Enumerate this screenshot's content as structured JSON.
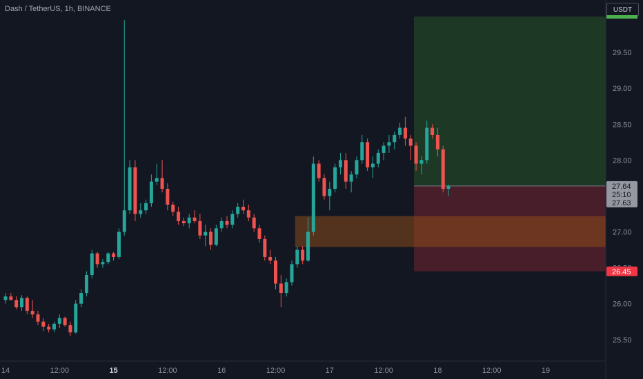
{
  "header": {
    "symbol_title": "Dash / TetherUS, 1h, BINANCE",
    "currency_button": "USDT"
  },
  "colors": {
    "background": "#131722",
    "up": "#26a69a",
    "down": "#ef5350",
    "profit_zone": "#1e3b27",
    "loss_zone": "#4a1f2a",
    "highlight_zone": "#8a4a1c",
    "target_line": "#4caf50"
  },
  "chart_data": {
    "type": "candlestick",
    "symbol": "Dash / TetherUS",
    "interval": "1h",
    "exchange": "BINANCE",
    "y_axis": {
      "ticks": [
        "25.50",
        "26.00",
        "26.50",
        "27.00",
        "27.50",
        "28.00",
        "28.50",
        "29.00",
        "29.50"
      ],
      "range": [
        25.2,
        30.0
      ]
    },
    "x_axis": {
      "ticks": [
        {
          "label": "14",
          "i": 0,
          "bold": false
        },
        {
          "label": "12:00",
          "i": 10,
          "bold": false
        },
        {
          "label": "15",
          "i": 20,
          "bold": true
        },
        {
          "label": "12:00",
          "i": 30,
          "bold": false
        },
        {
          "label": "16",
          "i": 40,
          "bold": false
        },
        {
          "label": "12:00",
          "i": 50,
          "bold": false
        },
        {
          "label": "17",
          "i": 60,
          "bold": false
        },
        {
          "label": "12:00",
          "i": 70,
          "bold": false
        },
        {
          "label": "18",
          "i": 80,
          "bold": false
        },
        {
          "label": "12:00",
          "i": 90,
          "bold": false
        },
        {
          "label": "19",
          "i": 100,
          "bold": false
        }
      ]
    },
    "candles": [
      [
        26.05,
        26.15,
        26.0,
        26.1
      ],
      [
        26.1,
        26.15,
        26.05,
        26.05
      ],
      [
        26.05,
        26.1,
        25.92,
        25.95
      ],
      [
        25.95,
        26.12,
        25.9,
        26.08
      ],
      [
        26.08,
        26.1,
        25.85,
        25.9
      ],
      [
        25.9,
        26.05,
        25.8,
        25.85
      ],
      [
        25.85,
        25.9,
        25.7,
        25.75
      ],
      [
        25.75,
        25.8,
        25.62,
        25.68
      ],
      [
        25.68,
        25.72,
        25.6,
        25.64
      ],
      [
        25.64,
        25.75,
        25.6,
        25.72
      ],
      [
        25.72,
        25.85,
        25.66,
        25.8
      ],
      [
        25.8,
        25.82,
        25.68,
        25.7
      ],
      [
        25.7,
        25.75,
        25.55,
        25.6
      ],
      [
        25.6,
        26.05,
        25.58,
        26.0
      ],
      [
        26.0,
        26.2,
        25.95,
        26.15
      ],
      [
        26.15,
        26.45,
        26.1,
        26.4
      ],
      [
        26.4,
        26.75,
        26.35,
        26.7
      ],
      [
        26.7,
        26.72,
        26.5,
        26.55
      ],
      [
        26.55,
        26.62,
        26.5,
        26.58
      ],
      [
        26.58,
        26.72,
        26.55,
        26.7
      ],
      [
        26.7,
        26.72,
        26.6,
        26.65
      ],
      [
        26.65,
        27.05,
        26.62,
        27.0
      ],
      [
        27.0,
        29.95,
        26.95,
        27.3
      ],
      [
        27.3,
        28.0,
        27.25,
        27.9
      ],
      [
        27.9,
        28.0,
        27.15,
        27.25
      ],
      [
        27.25,
        27.4,
        27.2,
        27.3
      ],
      [
        27.3,
        27.45,
        27.25,
        27.4
      ],
      [
        27.4,
        27.8,
        27.35,
        27.7
      ],
      [
        27.7,
        27.95,
        27.65,
        27.75
      ],
      [
        27.75,
        28.0,
        27.55,
        27.6
      ],
      [
        27.6,
        27.68,
        27.3,
        27.38
      ],
      [
        27.38,
        27.42,
        27.22,
        27.28
      ],
      [
        27.28,
        27.35,
        27.1,
        27.15
      ],
      [
        27.15,
        27.2,
        27.08,
        27.12
      ],
      [
        27.12,
        27.25,
        27.05,
        27.2
      ],
      [
        27.2,
        27.3,
        27.12,
        27.15
      ],
      [
        27.15,
        27.25,
        26.9,
        26.95
      ],
      [
        26.95,
        27.1,
        26.8,
        27.0
      ],
      [
        27.0,
        27.05,
        26.75,
        26.82
      ],
      [
        26.82,
        27.1,
        26.8,
        27.05
      ],
      [
        27.05,
        27.2,
        27.0,
        27.15
      ],
      [
        27.15,
        27.22,
        27.05,
        27.1
      ],
      [
        27.1,
        27.3,
        27.05,
        27.25
      ],
      [
        27.25,
        27.4,
        27.2,
        27.35
      ],
      [
        27.35,
        27.45,
        27.25,
        27.3
      ],
      [
        27.3,
        27.38,
        27.15,
        27.2
      ],
      [
        27.2,
        27.25,
        27.0,
        27.05
      ],
      [
        27.05,
        27.1,
        26.85,
        26.9
      ],
      [
        26.9,
        26.95,
        26.6,
        26.65
      ],
      [
        26.65,
        26.75,
        26.55,
        26.6
      ],
      [
        26.6,
        26.65,
        26.2,
        26.28
      ],
      [
        26.28,
        26.4,
        25.95,
        26.15
      ],
      [
        26.15,
        26.35,
        26.1,
        26.3
      ],
      [
        26.3,
        26.6,
        26.25,
        26.55
      ],
      [
        26.55,
        26.8,
        26.5,
        26.75
      ],
      [
        26.75,
        26.8,
        26.55,
        26.6
      ],
      [
        26.6,
        27.2,
        26.58,
        27.0
      ],
      [
        27.0,
        28.05,
        26.95,
        27.95
      ],
      [
        27.95,
        28.0,
        27.7,
        27.75
      ],
      [
        27.75,
        27.8,
        27.45,
        27.5
      ],
      [
        27.5,
        27.7,
        27.3,
        27.6
      ],
      [
        27.6,
        27.95,
        27.55,
        27.9
      ],
      [
        27.9,
        28.1,
        27.8,
        28.0
      ],
      [
        28.0,
        28.1,
        27.6,
        27.7
      ],
      [
        27.7,
        27.85,
        27.55,
        27.8
      ],
      [
        27.8,
        28.05,
        27.75,
        28.0
      ],
      [
        28.0,
        28.35,
        27.95,
        28.25
      ],
      [
        28.25,
        28.3,
        27.85,
        27.9
      ],
      [
        27.9,
        28.05,
        27.75,
        27.95
      ],
      [
        27.95,
        28.15,
        27.9,
        28.1
      ],
      [
        28.1,
        28.25,
        28.0,
        28.2
      ],
      [
        28.2,
        28.35,
        28.1,
        28.25
      ],
      [
        28.25,
        28.4,
        28.15,
        28.35
      ],
      [
        28.35,
        28.52,
        28.3,
        28.45
      ],
      [
        28.45,
        28.6,
        28.2,
        28.3
      ],
      [
        28.3,
        28.35,
        28.0,
        28.2
      ],
      [
        28.2,
        28.25,
        27.85,
        27.95
      ],
      [
        27.95,
        28.05,
        27.8,
        28.0
      ],
      [
        28.0,
        28.55,
        27.95,
        28.45
      ],
      [
        28.45,
        28.5,
        28.3,
        28.35
      ],
      [
        28.35,
        28.45,
        28.05,
        28.15
      ],
      [
        28.15,
        28.2,
        27.55,
        27.6
      ],
      [
        27.6,
        27.66,
        27.5,
        27.64
      ]
    ],
    "position": {
      "target": "30.00",
      "entry": "27.64",
      "stop": "26.45",
      "start_index": 76,
      "end_index": 111
    },
    "highlight_zone": {
      "top": 27.22,
      "bottom": 26.79,
      "start_index": 54,
      "end_index": 111
    },
    "price_labels": {
      "last": "27.64",
      "countdown": "25:10",
      "prev": "27.63",
      "stop": "26.45"
    }
  }
}
